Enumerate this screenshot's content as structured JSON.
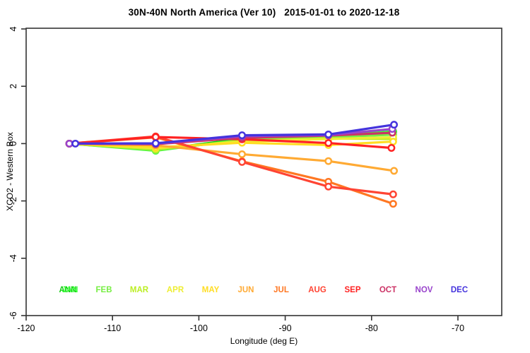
{
  "title": "30N-40N North America (Ver 10)   2015-01-01 to 2020-12-18",
  "chart_data": {
    "type": "line",
    "title": "30N-40N North America (Ver 10)   2015-01-01 to 2020-12-18",
    "xlabel": "Longitude (deg E)",
    "ylabel": "XCO2 - Western Box",
    "xlim": [
      -120,
      -64.9
    ],
    "ylim": [
      -6,
      4.05
    ],
    "x_ticks": [
      -120,
      -110,
      -100,
      -90,
      -80,
      -70
    ],
    "y_ticks": [
      4,
      2,
      0,
      -2,
      -4,
      -6
    ],
    "grid": false,
    "legend_position": "bottom-inside",
    "marker": "open-circle",
    "series": [
      {
        "name": "ANN",
        "color": "#11CC11",
        "x": [
          -115,
          -105,
          -95,
          -85,
          -77.5
        ],
        "y": [
          0,
          -0.22,
          0.17,
          0.28,
          0.41
        ]
      },
      {
        "name": "JAN",
        "color": "#33FF33",
        "x": [
          -115,
          -105,
          -95,
          -85,
          -77.5
        ],
        "y": [
          0,
          -0.25,
          0.14,
          0.25,
          0.43
        ]
      },
      {
        "name": "FEB",
        "color": "#77EE44",
        "x": [
          -115,
          -105,
          -95,
          -85,
          -77.5
        ],
        "y": [
          0,
          -0.23,
          0.12,
          0.22,
          0.31
        ]
      },
      {
        "name": "MAR",
        "color": "#BBEE22",
        "x": [
          -115,
          -105,
          -95,
          -85,
          -77.5
        ],
        "y": [
          0,
          -0.2,
          0.1,
          0.18,
          0.16
        ]
      },
      {
        "name": "APR",
        "color": "#EEEE33",
        "x": [
          -115,
          -105,
          -95,
          -85,
          -77.5
        ],
        "y": [
          0,
          -0.16,
          0.07,
          0.16,
          0.22
        ]
      },
      {
        "name": "MAY",
        "color": "#FFDD22",
        "x": [
          -115,
          -105,
          -95,
          -85,
          -77.5
        ],
        "y": [
          0,
          -0.13,
          0.03,
          -0.05,
          0.07
        ]
      },
      {
        "name": "JUN",
        "color": "#FFAA33",
        "x": [
          -115,
          -105,
          -95,
          -85,
          -77.4
        ],
        "y": [
          0,
          -0.06,
          -0.37,
          -0.61,
          -0.95
        ]
      },
      {
        "name": "JUL",
        "color": "#FF7722",
        "x": [
          -115,
          -105,
          -95,
          -85,
          -77.5
        ],
        "y": [
          0,
          0.22,
          -0.62,
          -1.33,
          -2.1
        ]
      },
      {
        "name": "AUG",
        "color": "#FF4433",
        "x": [
          -115,
          -105,
          -95,
          -85,
          -77.5
        ],
        "y": [
          0,
          0.25,
          -0.64,
          -1.5,
          -1.77
        ]
      },
      {
        "name": "SEP",
        "color": "#FF2222",
        "x": [
          -115,
          -105,
          -95,
          -85,
          -77.7
        ],
        "y": [
          0,
          0.23,
          0.15,
          0.02,
          -0.15
        ]
      },
      {
        "name": "OCT",
        "color": "#CC3366",
        "x": [
          -115,
          -105,
          -95,
          -85,
          -77.6
        ],
        "y": [
          0,
          -0.02,
          0.2,
          0.28,
          0.38
        ]
      },
      {
        "name": "NOV",
        "color": "#9944CC",
        "x": [
          -115,
          -105,
          -95,
          -85,
          -77.6
        ],
        "y": [
          0,
          0.0,
          0.26,
          0.3,
          0.51
        ]
      },
      {
        "name": "DEC",
        "color": "#4433DD",
        "x": [
          -114.3,
          -105,
          -95,
          -85,
          -77.4
        ],
        "y": [
          0,
          0.01,
          0.29,
          0.32,
          0.66
        ]
      }
    ]
  },
  "legend": {
    "entries": [
      {
        "label": "ANN",
        "color": "#11CC11"
      },
      {
        "label": "JAN",
        "color": "#33FF33"
      },
      {
        "label": "FEB",
        "color": "#77EE44"
      },
      {
        "label": "MAR",
        "color": "#BBEE22"
      },
      {
        "label": "APR",
        "color": "#EEEE33"
      },
      {
        "label": "MAY",
        "color": "#FFDD22"
      },
      {
        "label": "JUN",
        "color": "#FFAA33"
      },
      {
        "label": "JUL",
        "color": "#FF7722"
      },
      {
        "label": "AUG",
        "color": "#FF4433"
      },
      {
        "label": "SEP",
        "color": "#FF2222"
      },
      {
        "label": "OCT",
        "color": "#CC3366"
      },
      {
        "label": "NOV",
        "color": "#9944CC"
      },
      {
        "label": "DEC",
        "color": "#4433DD"
      }
    ]
  },
  "axes": {
    "x_tick_labels": [
      "-120",
      "-110",
      "-100",
      "-90",
      "-80",
      "-70"
    ],
    "y_tick_labels": [
      "4",
      "2",
      "0",
      "-2",
      "-4",
      "-6"
    ]
  }
}
